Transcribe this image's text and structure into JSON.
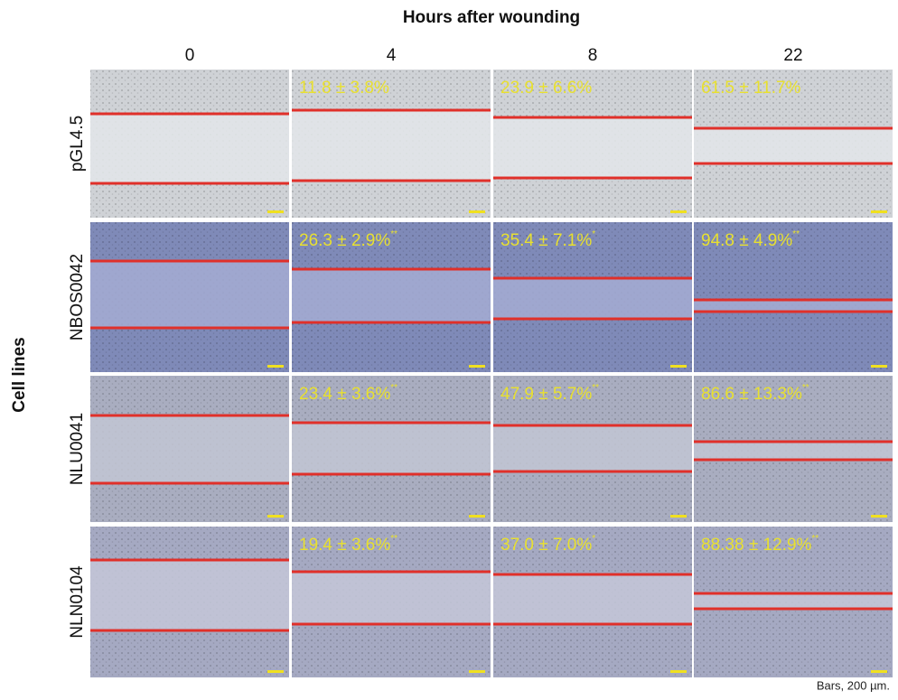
{
  "figure": {
    "title": "Hours after wounding",
    "row_axis_label": "Cell lines",
    "columns": [
      "0",
      "4",
      "8",
      "22"
    ],
    "rows": [
      {
        "name": "pGL4.5",
        "cells": [
          null,
          {
            "text": "11.8 ±  3.8%",
            "sig": null
          },
          {
            "text": "23.9 ±  6.6%",
            "sig": null
          },
          {
            "text": "61.5 ±  11.7%",
            "sig": null
          }
        ]
      },
      {
        "name": "NBOS0042",
        "cells": [
          null,
          {
            "text": "26.3 ±  2.9%",
            "sig": "**"
          },
          {
            "text": "35.4 ±  7.1%",
            "sig": "*"
          },
          {
            "text": "94.8 ±  4.9%",
            "sig": "**"
          }
        ]
      },
      {
        "name": "NLU0041",
        "cells": [
          null,
          {
            "text": "23.4 ±  3.6%",
            "sig": "**"
          },
          {
            "text": "47.9 ±  5.7%",
            "sig": "**"
          },
          {
            "text": "86.6 ±  13.3%",
            "sig": "**"
          }
        ]
      },
      {
        "name": "NLN0104",
        "cells": [
          null,
          {
            "text": "19.4 ±  3.6%",
            "sig": "**"
          },
          {
            "text": "37.0 ±  7.0%",
            "sig": "*"
          },
          {
            "text": "88.38 ±  12.9%",
            "sig": "**"
          }
        ]
      }
    ],
    "footnote": "Bars, 200 µm."
  }
}
